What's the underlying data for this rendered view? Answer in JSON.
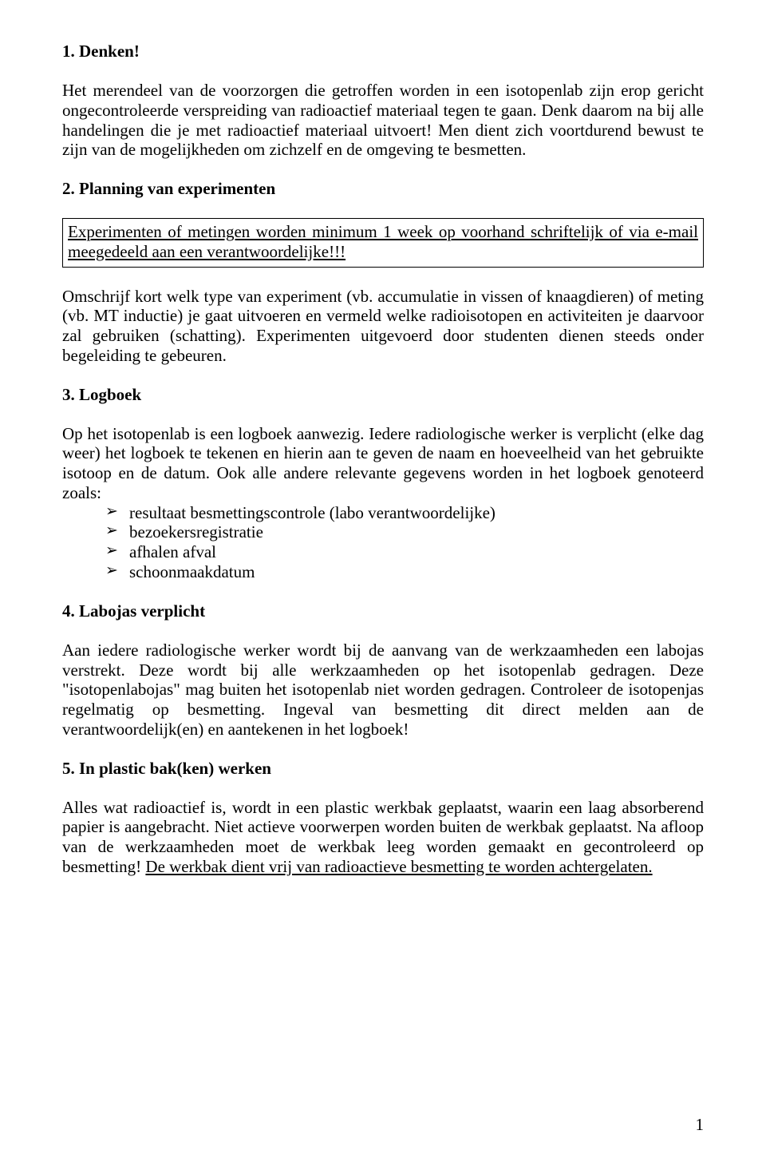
{
  "s1": {
    "heading": "1. Denken!",
    "p1": "Het merendeel van de voorzorgen die getroffen worden in een isotopenlab zijn erop gericht ongecontroleerde verspreiding van radioactief materiaal tegen te gaan. Denk daarom na bij alle handelingen die je met radioactief materiaal uitvoert! Men dient zich voortdurend bewust te zijn van de mogelijkheden om zichzelf en de omgeving te besmetten."
  },
  "s2": {
    "heading": "2. Planning van experimenten",
    "box": "Experimenten of metingen worden minimum 1 week op voorhand schriftelijk of via e-mail meegedeeld aan een verantwoordelijke!!!",
    "p1": "Omschrijf kort welk type van experiment (vb. accumulatie in vissen of knaagdieren) of meting (vb. MT inductie) je gaat uitvoeren en vermeld welke radioisotopen en activiteiten je daarvoor zal gebruiken (schatting). Experimenten uitgevoerd door studenten dienen steeds onder begeleiding te gebeuren."
  },
  "s3": {
    "heading": "3. Logboek",
    "p1": "Op het isotopenlab is een logboek aanwezig. Iedere radiologische werker is verplicht (elke dag weer) het logboek te tekenen en hierin aan te geven de naam en hoeveelheid van het gebruikte isotoop en de datum. Ook alle andere relevante gegevens worden in het logboek genoteerd zoals:",
    "items": [
      "resultaat besmettingscontrole (labo verantwoordelijke)",
      "bezoekersregistratie",
      "afhalen afval",
      "schoonmaakdatum"
    ]
  },
  "s4": {
    "heading": "4. Labojas verplicht",
    "p1": "Aan iedere radiologische werker wordt bij de aanvang van de werkzaamheden een labojas verstrekt. Deze wordt bij alle werkzaamheden op het isotopenlab gedragen. Deze \"isotopenlabojas\" mag buiten het isotopenlab niet worden gedragen. Controleer de isotopenjas regelmatig op besmetting. Ingeval van besmetting dit direct melden aan de verantwoordelijk(en) en aantekenen in het logboek!"
  },
  "s5": {
    "heading": "5. In plastic bak(ken) werken",
    "p1a": "Alles wat radioactief is, wordt in een plastic werkbak geplaatst, waarin een laag absorberend papier is aangebracht. Niet actieve voorwerpen worden buiten de werkbak geplaatst. Na afloop van de werkzaamheden moet de werkbak leeg worden gemaakt en gecontroleerd op besmetting! ",
    "p1b": "De werkbak dient vrij van radioactieve besmetting te worden achtergelaten."
  },
  "pageNumber": "1"
}
